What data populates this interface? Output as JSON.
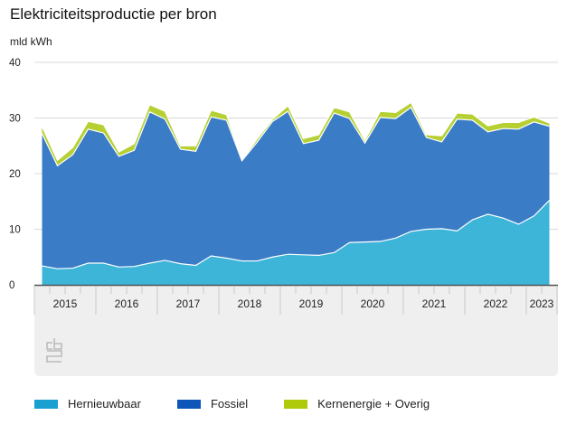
{
  "chart_data": {
    "type": "area",
    "stacked": true,
    "title": "Elektriciteitsproductie per bron",
    "ylabel": "mld kWh",
    "xlabel": "",
    "ylim": [
      0,
      40
    ],
    "yticks": [
      0,
      10,
      20,
      30,
      40
    ],
    "grid": true,
    "legend_position": "bottom",
    "year_labels": [
      "2015",
      "2016",
      "2017",
      "2018",
      "2019",
      "2020",
      "2021",
      "2022",
      "2023"
    ],
    "x": [
      "2015Q1",
      "2015Q2",
      "2015Q3",
      "2015Q4",
      "2016Q1",
      "2016Q2",
      "2016Q3",
      "2016Q4",
      "2017Q1",
      "2017Q2",
      "2017Q3",
      "2017Q4",
      "2018Q1",
      "2018Q2",
      "2018Q3",
      "2018Q4",
      "2019Q1",
      "2019Q2",
      "2019Q3",
      "2019Q4",
      "2020Q1",
      "2020Q2",
      "2020Q3",
      "2020Q4",
      "2021Q1",
      "2021Q2",
      "2021Q3",
      "2021Q4",
      "2022Q1",
      "2022Q2",
      "2022Q3",
      "2022Q4",
      "2023Q1",
      "2023Q2"
    ],
    "series": [
      {
        "name": "Hernieuwbaar",
        "color": "#3cb5d8",
        "legend_color": "#19a0d0",
        "values": [
          3.4,
          2.9,
          3.0,
          3.9,
          3.9,
          3.2,
          3.3,
          3.9,
          4.4,
          3.8,
          3.5,
          5.2,
          4.8,
          4.3,
          4.3,
          5.0,
          5.5,
          5.4,
          5.3,
          5.8,
          7.6,
          7.7,
          7.8,
          8.4,
          9.6,
          10.0,
          10.1,
          9.7,
          11.7,
          12.7,
          12.0,
          10.9,
          12.4,
          15.2
        ]
      },
      {
        "name": "Fossiel",
        "color": "#3b7cc6",
        "legend_color": "#0d55b8",
        "values": [
          23.8,
          18.5,
          20.4,
          24.1,
          23.4,
          19.9,
          20.9,
          27.2,
          25.4,
          20.6,
          20.5,
          25.0,
          24.8,
          18.0,
          21.4,
          24.4,
          25.7,
          20.0,
          20.7,
          25.1,
          22.3,
          17.8,
          22.3,
          21.5,
          22.3,
          16.5,
          15.6,
          20.1,
          17.9,
          14.8,
          16.1,
          17.1,
          16.9,
          13.3
        ]
      },
      {
        "name": "Kernenergie + Overig",
        "color": "#b6d034",
        "legend_color": "#afca0b",
        "values": [
          1.3,
          1.0,
          1.3,
          1.4,
          1.5,
          0.8,
          1.2,
          1.3,
          1.4,
          0.6,
          1.0,
          1.2,
          1.0,
          0.1,
          0.6,
          0.4,
          1.0,
          0.9,
          1.0,
          1.0,
          1.2,
          0.5,
          1.1,
          1.1,
          0.9,
          0.5,
          1.1,
          1.1,
          1.1,
          1.1,
          1.1,
          1.2,
          0.9,
          0.6
        ]
      }
    ]
  }
}
